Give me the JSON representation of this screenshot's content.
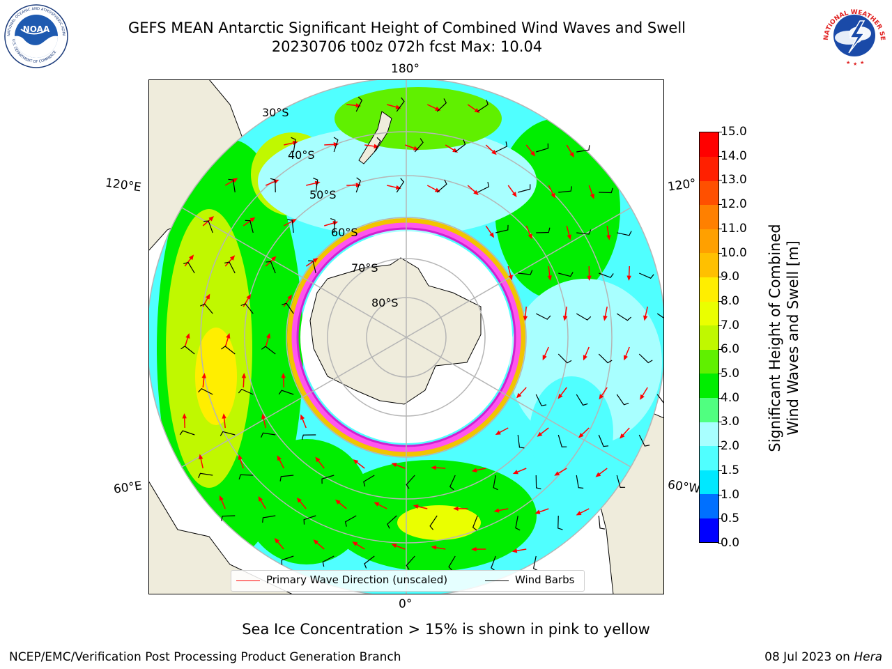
{
  "header": {
    "title_line1": "GEFS MEAN Antarctic Significant Height of Combined Wind Waves and Swell",
    "title_line2": "20230706 t00z 072h fcst   Max: 10.04"
  },
  "logos": {
    "noaa_text": "NOAA",
    "noaa_ring_top": "NATIONAL OCEANIC AND ATMOSPHERIC ADMINISTRATION",
    "noaa_ring_bottom": "U.S. DEPARTMENT OF COMMERCE",
    "nws_ring": "NATIONAL WEATHER SERVICE"
  },
  "map": {
    "projection": "south-polar-stereographic",
    "longitude_labels": [
      "180°",
      "120°E",
      "120°",
      "60°E",
      "60°W",
      "0°"
    ],
    "latitude_labels": [
      "30°S",
      "40°S",
      "50°S",
      "60°S",
      "70°S",
      "80°S"
    ],
    "colors": {
      "land": "#efecdc",
      "ice_edge_pink": "#ff55ee",
      "ice_edge_magenta": "#d020d0",
      "ice_edge_yellow": "#f2c400",
      "wave_arrow": "#ff0000",
      "wind_barb": "#000000",
      "graticule": "#b5b5b5"
    }
  },
  "legend": {
    "primary_wave": "Primary Wave Direction (unscaled)",
    "wind_barbs": "Wind Barbs"
  },
  "colorbar": {
    "label_line1": "Significant Height of Combined",
    "label_line2": "Wind Waves and Swell [m]",
    "tick_labels": [
      "15.0",
      "14.0",
      "13.0",
      "12.0",
      "11.0",
      "10.0",
      "9.0",
      "8.0",
      "7.0",
      "6.0",
      "5.0",
      "4.0",
      "3.0",
      "2.0",
      "1.5",
      "1.0",
      "0.5",
      "0.0"
    ],
    "levels": [
      0,
      0.5,
      1,
      1.5,
      2,
      3,
      4,
      5,
      6,
      7,
      8,
      9,
      10,
      11,
      12,
      13,
      14,
      15
    ],
    "colors": [
      "#0000ff",
      "#0070ff",
      "#00e8ff",
      "#50ffff",
      "#a8ffff",
      "#50ff80",
      "#00ee00",
      "#60f000",
      "#c0f800",
      "#eaff00",
      "#ffee00",
      "#ffc000",
      "#ffa000",
      "#ff8000",
      "#ff5000",
      "#ff2000",
      "#ff0000"
    ]
  },
  "footnote": "Sea Ice Concentration > 15% is shown in pink to yellow",
  "footer": {
    "left": "NCEP/EMC/Verification Post Processing Product Generation Branch",
    "right_date": "08 Jul 2023 on",
    "right_host": "Hera"
  }
}
